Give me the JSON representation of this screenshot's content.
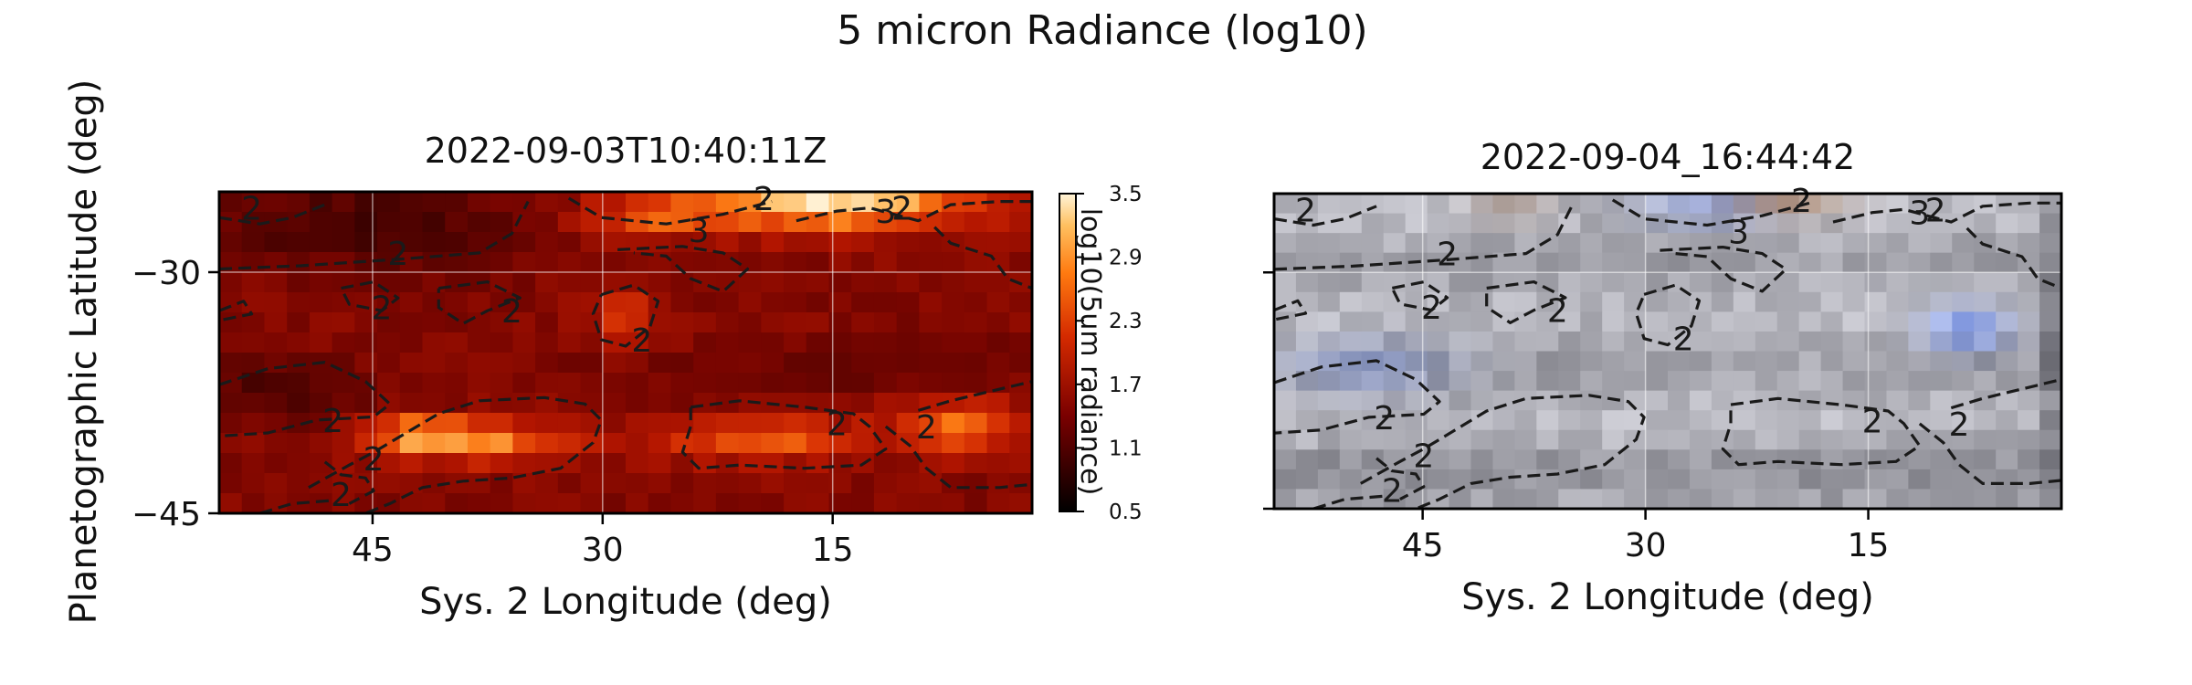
{
  "figure": {
    "suptitle": "5 micron Radiance (log10)"
  },
  "chart_data": [
    {
      "type": "heatmap",
      "title": "2022-09-03T10:40:11Z",
      "xlabel": "Sys. 2 Longitude (deg)",
      "ylabel": "Planetographic Latitude (deg)",
      "xlim": [
        55,
        2
      ],
      "ylim": [
        -45,
        -25
      ],
      "xticks": [
        45,
        30,
        15
      ],
      "yticks": [
        -30,
        -45
      ],
      "grid": true,
      "colormap": "gist_heat-like (dark red to pale yellow)",
      "contour_level": 2,
      "contour_labels": [
        "2",
        "2",
        "2",
        "2",
        "2",
        "2",
        "2",
        "2",
        "2",
        "2",
        "2",
        "2",
        "3",
        "3"
      ],
      "colorbar": {
        "label": "log10(5um radiance)",
        "ticks": [
          "3.5",
          "2.9",
          "2.3",
          "1.7",
          "1.1",
          "0.5"
        ],
        "range": [
          0.5,
          3.5
        ]
      }
    },
    {
      "type": "heatmap",
      "title": "2022-09-04_16:44:42",
      "xlabel": "Sys. 2 Longitude (deg)",
      "xlim": [
        55,
        2
      ],
      "ylim": [
        -45,
        -25
      ],
      "xticks": [
        45,
        30,
        15
      ],
      "grid": true,
      "image": "visible-light color image (grey-blue bands)",
      "contour_level": 2,
      "contour_labels": [
        "2",
        "2",
        "2",
        "2",
        "2",
        "2",
        "2",
        "2",
        "2",
        "2",
        "2",
        "2",
        "3",
        "3"
      ]
    }
  ]
}
